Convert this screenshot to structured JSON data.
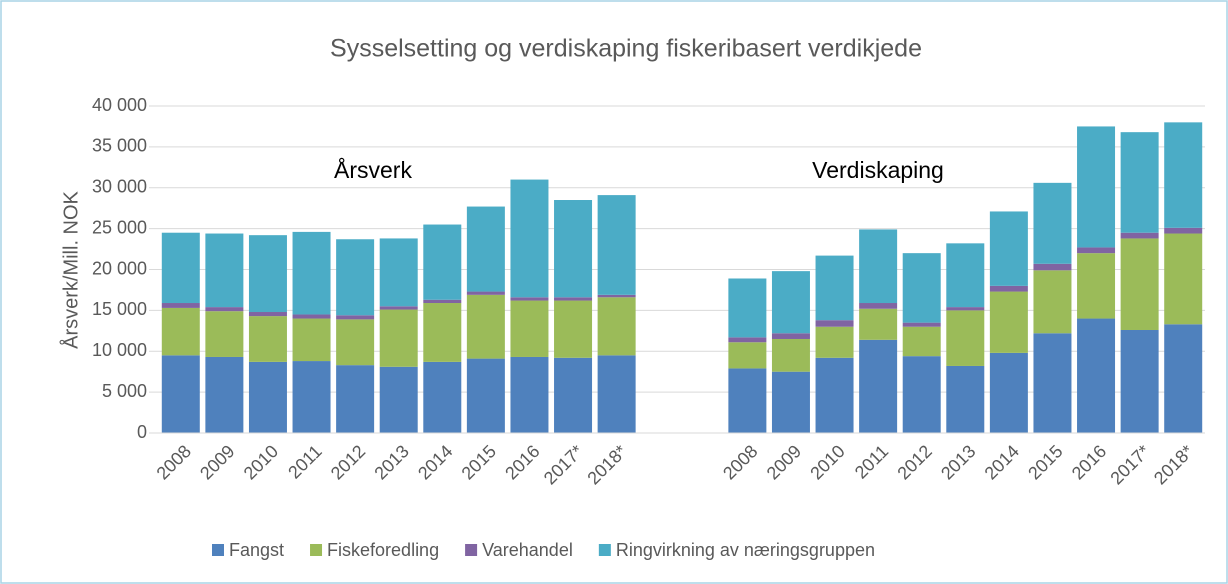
{
  "chart_data": {
    "type": "stacked_bar",
    "title": "Sysselsetting og verdiskaping fiskeribasert verdikjede",
    "y_label": "Årsverk/Mill. NOK",
    "annotations": [
      "Årsverk",
      "Verdiskaping"
    ],
    "categories": [
      "2008",
      "2009",
      "2010",
      "2011",
      "2012",
      "2013",
      "2014",
      "2015",
      "2016",
      "2017*",
      "2018*",
      null,
      null,
      "2008",
      "2009",
      "2010",
      "2011",
      "2012",
      "2013",
      "2014",
      "2015",
      "2016",
      "2017*",
      "2018*"
    ],
    "series": [
      {
        "name": "Fangst",
        "color": "#4f81bd",
        "values": [
          9500,
          9300,
          8700,
          8800,
          8300,
          8100,
          8700,
          9100,
          9300,
          9200,
          9500,
          null,
          null,
          7900,
          7500,
          9200,
          11400,
          9400,
          8200,
          9800,
          12200,
          14000,
          12600,
          13300
        ]
      },
      {
        "name": "Fiskeforedling",
        "color": "#9bbb59",
        "values": [
          5800,
          5600,
          5600,
          5200,
          5600,
          7000,
          7200,
          7800,
          6900,
          7000,
          7100,
          null,
          null,
          3200,
          4000,
          3800,
          3800,
          3600,
          6800,
          7500,
          7700,
          8000,
          11200,
          11100
        ]
      },
      {
        "name": "Varehandel",
        "color": "#8064a2",
        "values": [
          600,
          500,
          500,
          500,
          500,
          400,
          400,
          400,
          400,
          400,
          300,
          null,
          null,
          600,
          700,
          800,
          700,
          500,
          400,
          700,
          800,
          700,
          700,
          700
        ]
      },
      {
        "name": "Ringvirkning av næringsgruppen",
        "color": "#4bacc6",
        "values": [
          8600,
          9000,
          9400,
          10100,
          9300,
          8300,
          9200,
          10400,
          14400,
          11900,
          12200,
          null,
          null,
          7200,
          7600,
          7900,
          9000,
          8500,
          7800,
          9100,
          9900,
          14800,
          12300,
          12900
        ]
      }
    ],
    "ylim": [
      0,
      40000
    ],
    "yticks": [
      0,
      {
        "value": 5000,
        "label": "5 000"
      },
      {
        "value": 10000,
        "label": "10 000"
      },
      {
        "value": 15000,
        "label": "15 000"
      },
      {
        "value": 20000,
        "label": "20 000"
      },
      {
        "value": 25000,
        "label": "25 000"
      },
      {
        "value": 30000,
        "label": "30 000"
      },
      {
        "value": 35000,
        "label": "35 000"
      },
      {
        "value": 40000,
        "label": "40 000"
      }
    ],
    "grid": true,
    "legend": "bottom"
  }
}
